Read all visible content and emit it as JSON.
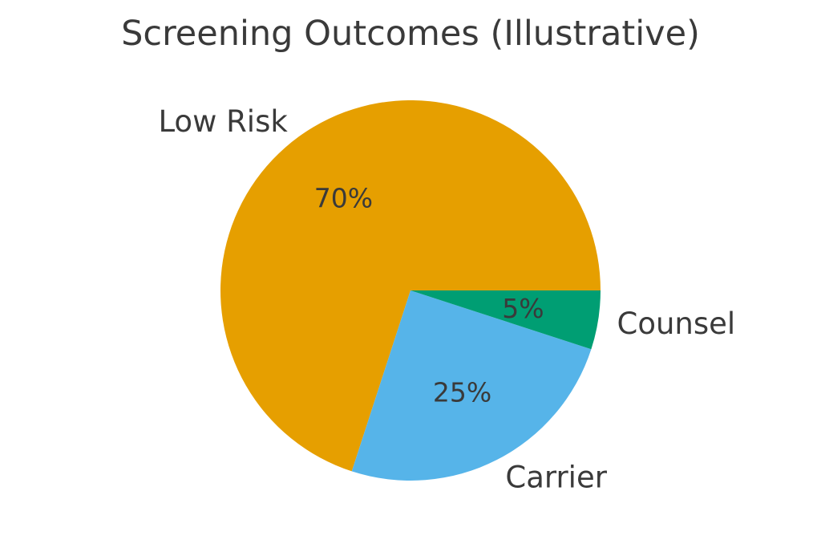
{
  "page": {
    "background": "#ffffff",
    "text_color": "#3a3a3a"
  },
  "chart_data": {
    "type": "pie",
    "title": "Screening Outcomes (Illustrative)",
    "categories": [
      "Low Risk",
      "Carrier",
      "Counsel"
    ],
    "values": [
      70,
      25,
      5
    ],
    "slices": [
      {
        "label": "Low Risk",
        "value": 70,
        "pct_label": "70%",
        "color": "#E69F00"
      },
      {
        "label": "Carrier",
        "value": 25,
        "pct_label": "25%",
        "color": "#56B4E9"
      },
      {
        "label": "Counsel",
        "value": 5,
        "pct_label": "5%",
        "color": "#009E73"
      }
    ],
    "layout": {
      "start_angle_deg": 0,
      "counterclockwise": true,
      "pct_distance": 0.6,
      "label_distance": 1.1,
      "legend": "none",
      "grid": false,
      "background": "#ffffff",
      "text_color": "#3a3a3a"
    }
  }
}
